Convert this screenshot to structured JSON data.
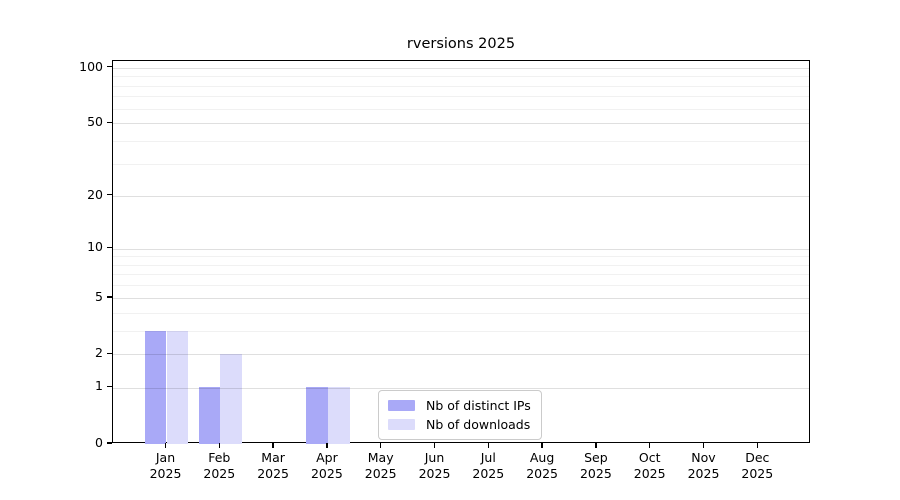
{
  "title": "rversions 2025",
  "chart_data": {
    "type": "bar",
    "title": "rversions 2025",
    "categories": [
      "Jan",
      "Feb",
      "Mar",
      "Apr",
      "May",
      "Jun",
      "Jul",
      "Aug",
      "Sep",
      "Oct",
      "Nov",
      "Dec"
    ],
    "year_label": "2025",
    "series": [
      {
        "name": "Nb of distinct IPs",
        "color": "#a9a9f7",
        "values": [
          3,
          1,
          0,
          1,
          0,
          0,
          0,
          0,
          0,
          0,
          0,
          0
        ]
      },
      {
        "name": "Nb of downloads",
        "color": "#dcdcfb",
        "values": [
          3,
          2,
          0,
          1,
          0,
          0,
          0,
          0,
          0,
          0,
          0,
          0
        ]
      }
    ],
    "xlabel": "",
    "ylabel": "",
    "yscale": "log1p",
    "ylim": [
      0,
      108.6
    ],
    "yticks": [
      0,
      1,
      2,
      5,
      10,
      20,
      50,
      100
    ],
    "yminor_gridlines": [
      3,
      4,
      6,
      7,
      8,
      9,
      30,
      40,
      60,
      70,
      80,
      90
    ],
    "grid": "horizontal",
    "legend_position": "lower center"
  },
  "legend": {
    "items": [
      {
        "label": "Nb of distinct IPs",
        "color": "#a9a9f7"
      },
      {
        "label": "Nb of downloads",
        "color": "#dcdcfb"
      }
    ]
  }
}
